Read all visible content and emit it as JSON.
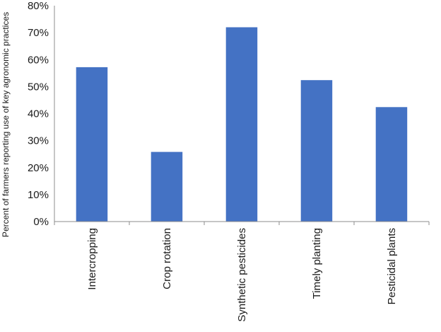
{
  "chart_data": {
    "type": "bar",
    "title": "",
    "xlabel": "",
    "ylabel": "Percent of farmers reporting use of key agronomic practices",
    "categories": [
      "Intercropping",
      "Crop rotation",
      "Synthetic pesticides",
      "Timely planting",
      "Pesticidal plants"
    ],
    "values": [
      57.2,
      25.8,
      72.0,
      52.4,
      42.4
    ],
    "ylim": [
      0,
      80
    ],
    "yticks": [
      0,
      10,
      20,
      30,
      40,
      50,
      60,
      70,
      80
    ],
    "ytick_labels": [
      "0%",
      "10%",
      "20%",
      "30%",
      "40%",
      "50%",
      "60%",
      "70%",
      "80%"
    ],
    "grid": false,
    "legend": "none",
    "bar_color": "#4472C4"
  }
}
